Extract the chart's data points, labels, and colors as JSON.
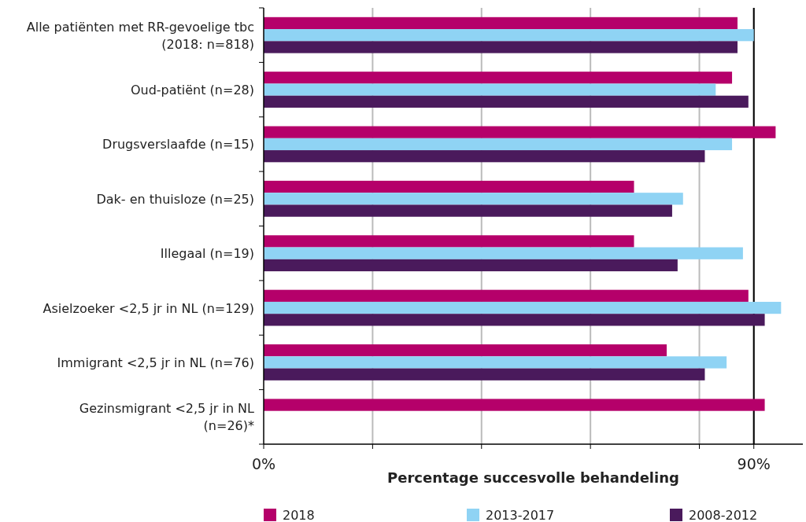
{
  "chart_data": {
    "type": "bar",
    "orientation": "horizontal",
    "xlabel": "Percentage succesvolle behandeling",
    "categories": [
      "Alle patiënten met RR-gevoelige tbc\n(2018: n=818)",
      "Oud-patiënt (n=28)",
      "Drugsverslaafde (n=15)",
      "Dak- en thuisloze (n=25)",
      "Illegaal (n=19)",
      "Asielzoeker <2,5 jr in NL (n=129)",
      "Immigrant <2,5 jr in NL (n=76)",
      "Gezinsmigrant <2,5 jr in NL\n(n=26)*"
    ],
    "series": [
      {
        "name": "2018",
        "color": "#b5006a",
        "values": [
          87,
          86,
          94,
          68,
          68,
          89,
          74,
          92
        ]
      },
      {
        "name": "2013-2017",
        "color": "#8fd3f4",
        "values": [
          90,
          83,
          86,
          77,
          88,
          95,
          85,
          null
        ]
      },
      {
        "name": "2008-2012",
        "color": "#4a1a5c",
        "values": [
          87,
          89,
          81,
          75,
          76,
          92,
          81,
          null
        ]
      }
    ],
    "xlim": [
      0,
      99
    ],
    "xticks": [
      {
        "value": 0,
        "label": "0%"
      },
      {
        "value": 20,
        "label": null
      },
      {
        "value": 40,
        "label": null
      },
      {
        "value": 60,
        "label": null
      },
      {
        "value": 80,
        "label": null
      },
      {
        "value": 90,
        "label": "90%"
      }
    ],
    "ref_lines": [
      {
        "axis": "x",
        "value": 90,
        "color": "#000000"
      }
    ],
    "grid": "x",
    "legend": "bottom"
  }
}
